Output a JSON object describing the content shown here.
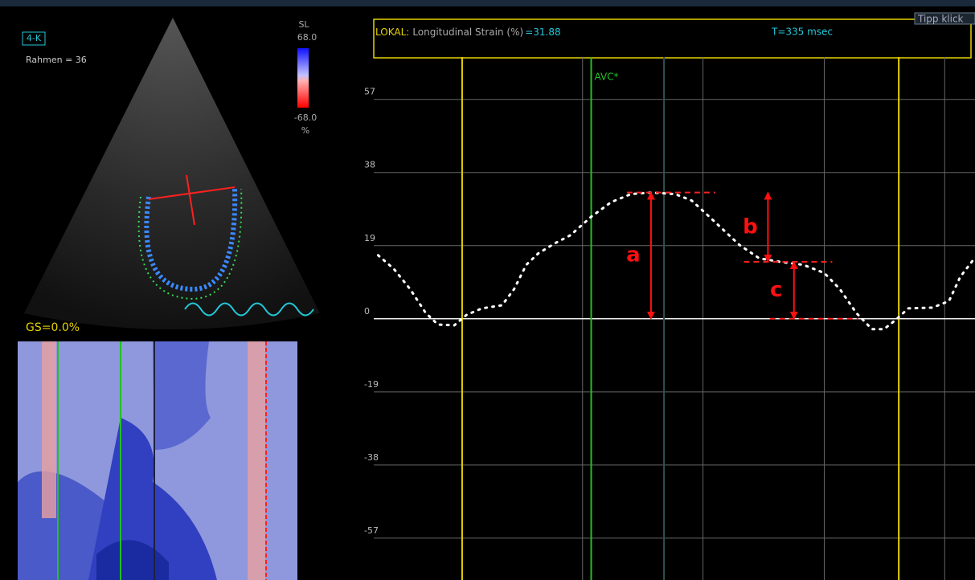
{
  "left_panel": {
    "view_label": "4-K",
    "frame_label": "Rahmen = 36",
    "scale_title": "SL",
    "scale_max": "68.0",
    "scale_min": "-68.0",
    "scale_unit": "%",
    "gs_label": "GS=0.0%"
  },
  "header": {
    "region": "LOKAL:",
    "measure": "Longitudinal Strain (%)",
    "value": "=31.88",
    "time": "T=335 msec",
    "tip": "Tipp klick"
  },
  "chart_data": {
    "type": "line",
    "x": [
      5,
      23,
      42,
      60,
      74,
      93,
      107,
      125,
      148,
      162,
      176,
      190,
      209,
      227,
      251,
      274,
      297,
      320,
      348,
      367,
      385,
      404,
      422,
      445,
      469,
      496,
      520,
      538,
      557,
      575,
      589,
      603,
      617,
      645,
      664,
      677,
      691
    ],
    "values": [
      16.5,
      13,
      7.7,
      1.5,
      -1.5,
      -1.7,
      1,
      2.7,
      3.5,
      7.7,
      14,
      17,
      19.6,
      21.7,
      26.5,
      30.3,
      32.4,
      32.8,
      32.4,
      30.7,
      27,
      23,
      19.2,
      15.7,
      14.8,
      14,
      11.9,
      7.7,
      1.5,
      -2.7,
      -2.7,
      -0.2,
      2.7,
      2.9,
      4.6,
      10.9,
      15
    ],
    "color": "#ffffff",
    "xlim": [
      0,
      694
    ],
    "xticks": [
      241,
      380,
      520,
      659
    ],
    "ylim": [
      -68,
      68
    ],
    "yticks": [
      57,
      38,
      19,
      0,
      -19,
      -38,
      -57
    ],
    "grid": true,
    "markers": [
      {
        "value": 102,
        "color": "#e6d200"
      },
      {
        "value": 251,
        "color": "#22c022",
        "label": "AVC*"
      },
      {
        "value": 335,
        "color": "#2f4f4f"
      },
      {
        "value": 606,
        "color": "#e6d200"
      }
    ],
    "annotations": [
      {
        "label": "a",
        "x": 320,
        "from": 0,
        "to": 32.8
      },
      {
        "label": "b",
        "x": 455,
        "from": 32.8,
        "to": 14.8
      },
      {
        "label": "c",
        "x": 485,
        "from": 14.8,
        "to": 0
      }
    ]
  }
}
